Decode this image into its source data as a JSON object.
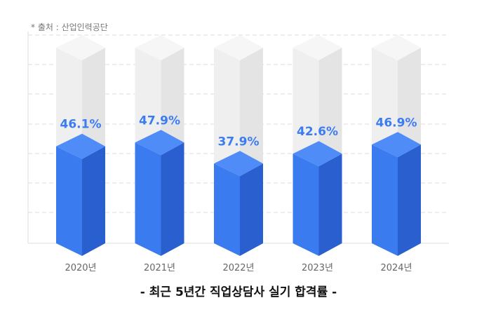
{
  "source_note": "* 출처 : 산업인력공단",
  "chart_data": {
    "type": "bar",
    "title": "- 최근 5년간 직업상담사 실기 합격률 -",
    "categories": [
      "2020년",
      "2021년",
      "2022년",
      "2023년",
      "2024년"
    ],
    "values": [
      46.1,
      47.9,
      37.9,
      42.6,
      46.9
    ],
    "value_labels": [
      "46.1%",
      "47.9%",
      "37.9%",
      "42.6%",
      "46.9%"
    ],
    "ylim": [
      0,
      100
    ],
    "grid": true,
    "colors": {
      "bar_front": "#3a7bf0",
      "bar_side": "#2a5fd0",
      "bar_top": "#4f8cf7",
      "label": "#3b7cf3",
      "ghost": "#ececec"
    }
  }
}
